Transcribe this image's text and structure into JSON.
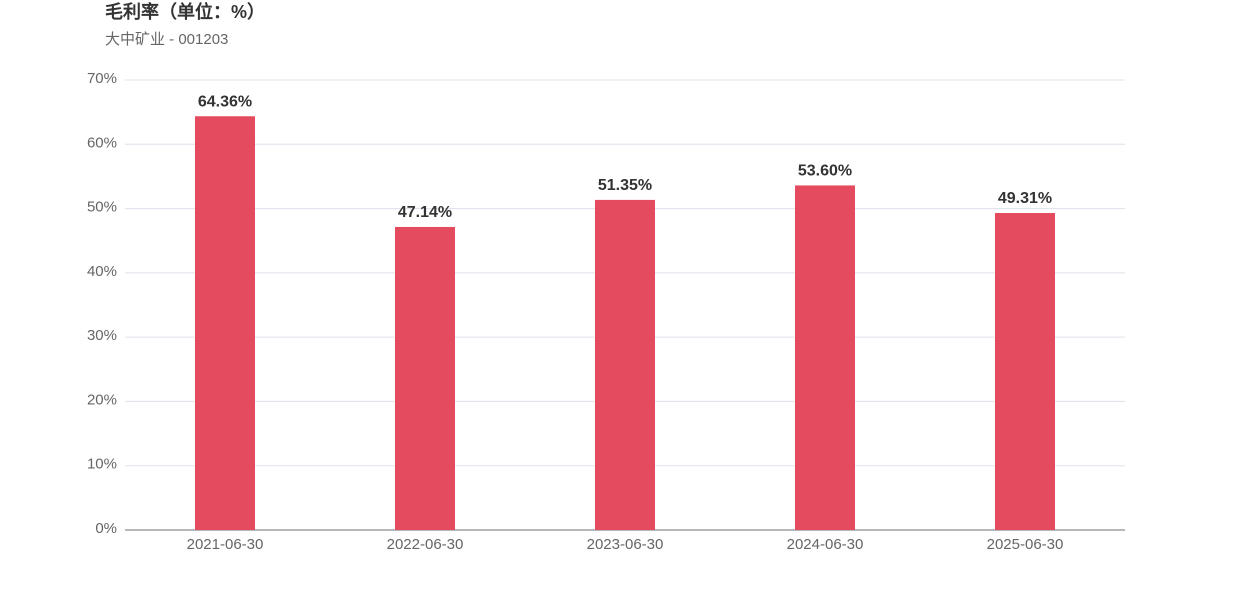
{
  "chart_data": {
    "type": "bar",
    "title": "毛利率（单位：%）",
    "subtitle": "大中矿业 - 001203",
    "categories": [
      "2021-06-30",
      "2022-06-30",
      "2023-06-30",
      "2024-06-30",
      "2025-06-30"
    ],
    "values": [
      64.36,
      47.14,
      51.35,
      53.6,
      49.31
    ],
    "value_labels": [
      "64.36%",
      "47.14%",
      "51.35%",
      "53.60%",
      "49.31%"
    ],
    "color": "#e44b5e",
    "ylim": [
      0,
      70
    ],
    "yticks": [
      {
        "value": 0,
        "label": "0%"
      },
      {
        "value": 10,
        "label": "10%"
      },
      {
        "value": 20,
        "label": "20%"
      },
      {
        "value": 30,
        "label": "30%"
      },
      {
        "value": 40,
        "label": "40%"
      },
      {
        "value": 50,
        "label": "50%"
      },
      {
        "value": 60,
        "label": "60%"
      },
      {
        "value": 70,
        "label": "70%"
      }
    ],
    "grid": true
  }
}
